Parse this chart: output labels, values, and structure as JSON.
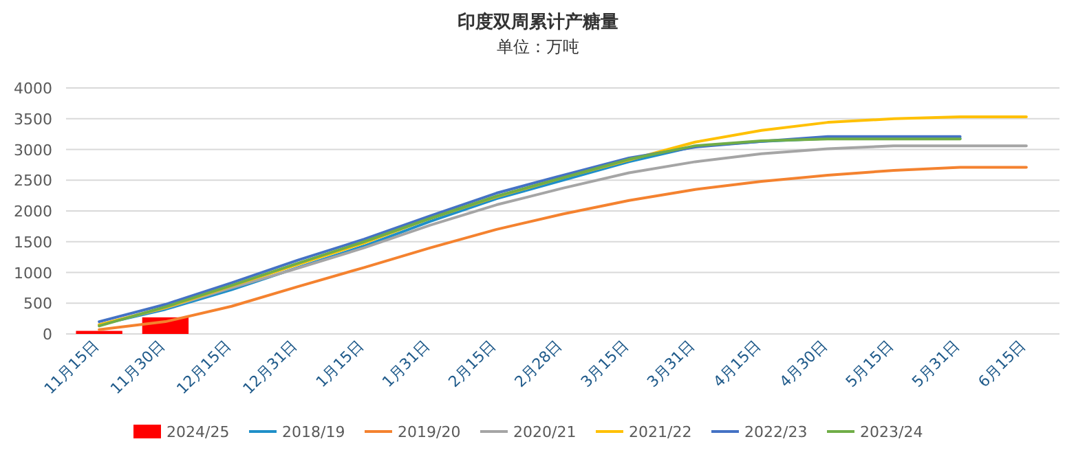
{
  "chart_data": {
    "type": "line",
    "title": "印度双周累计产糖量",
    "subtitle": "单位：万吨",
    "categories": [
      "11月15日",
      "11月30日",
      "12月15日",
      "12月31日",
      "1月15日",
      "1月31日",
      "2月15日",
      "2月28日",
      "3月15日",
      "3月31日",
      "4月15日",
      "4月30日",
      "5月15日",
      "5月31日",
      "6月15日"
    ],
    "series": [
      {
        "name": "2024/25",
        "type": "bar",
        "color": "#ff0000",
        "values": [
          50,
          270,
          null,
          null,
          null,
          null,
          null,
          null,
          null,
          null,
          null,
          null,
          null,
          null,
          null
        ]
      },
      {
        "name": "2018/19",
        "color": "#1f8fc8",
        "values": [
          150,
          400,
          720,
          1080,
          1430,
          1830,
          2200,
          2500,
          2800,
          3050,
          3130,
          3180,
          3180,
          3180,
          null
        ]
      },
      {
        "name": "2019/20",
        "color": "#f4822f",
        "values": [
          70,
          200,
          450,
          770,
          1080,
          1400,
          1700,
          1950,
          2170,
          2350,
          2480,
          2580,
          2660,
          2710,
          2710
        ]
      },
      {
        "name": "2020/21",
        "color": "#a5a5a5",
        "values": [
          150,
          420,
          750,
          1070,
          1400,
          1770,
          2100,
          2370,
          2620,
          2800,
          2930,
          3010,
          3060,
          3060,
          3060
        ]
      },
      {
        "name": "2021/22",
        "color": "#ffc000",
        "values": [
          150,
          430,
          780,
          1130,
          1480,
          1880,
          2230,
          2540,
          2830,
          3120,
          3310,
          3440,
          3500,
          3530,
          3530
        ]
      },
      {
        "name": "2022/23",
        "color": "#4472c4",
        "values": [
          200,
          480,
          830,
          1200,
          1540,
          1920,
          2290,
          2580,
          2860,
          3040,
          3130,
          3210,
          3210,
          3210,
          null
        ]
      },
      {
        "name": "2023/24",
        "color": "#70ad47",
        "values": [
          130,
          440,
          790,
          1150,
          1500,
          1880,
          2240,
          2540,
          2840,
          3060,
          3140,
          3170,
          3170,
          3170,
          null
        ]
      }
    ],
    "ylim": [
      0,
      4000
    ],
    "yticks": [
      0,
      500,
      1000,
      1500,
      2000,
      2500,
      3000,
      3500,
      4000
    ],
    "grid": "y",
    "legend": "bottom",
    "marker": "none",
    "line_style": "solid"
  }
}
